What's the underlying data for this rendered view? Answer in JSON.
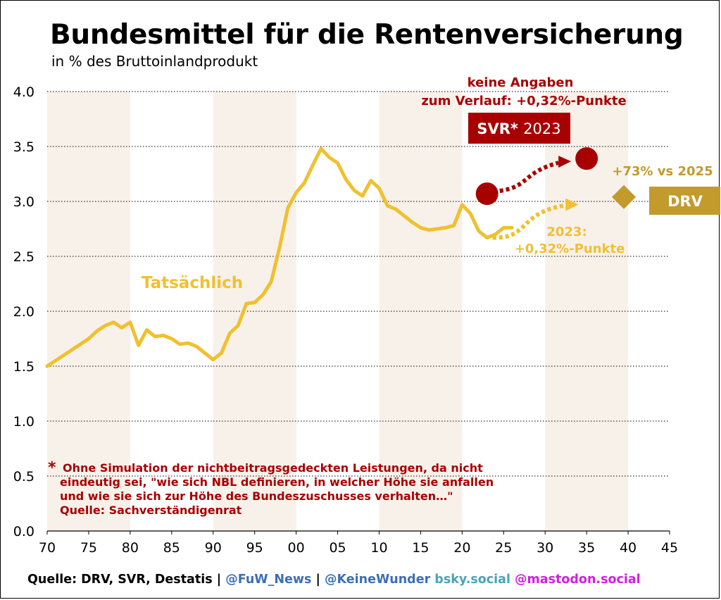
{
  "title": "Bundesmittel für die Rentenversicherung",
  "subtitle": "in % des Bruttoinlandprodukt",
  "colors": {
    "actual": "#f0c030",
    "svr": "#a80000",
    "drv": "#c39a2c",
    "band": "#f8f1ea",
    "grid": "#000000"
  },
  "chart_data": {
    "type": "line",
    "xlim": [
      70,
      45
    ],
    "ylim": [
      0.0,
      4.0
    ],
    "x_tick_labels": [
      "70",
      "75",
      "80",
      "85",
      "90",
      "95",
      "00",
      "05",
      "10",
      "15",
      "20",
      "25",
      "30",
      "35",
      "40",
      "45"
    ],
    "y_tick_labels": [
      "0.0",
      "0.5",
      "1.0",
      "1.5",
      "2.0",
      "2.5",
      "3.0",
      "3.5",
      "4.0"
    ],
    "y_ticks": [
      0.0,
      0.5,
      1.0,
      1.5,
      2.0,
      2.5,
      3.0,
      3.5,
      4.0
    ],
    "x_axis_years": "1970–2045",
    "series": [
      {
        "name": "Tatsächlich",
        "x": [
          1970,
          1971,
          1972,
          1973,
          1974,
          1975,
          1976,
          1977,
          1978,
          1979,
          1980,
          1981,
          1982,
          1983,
          1984,
          1985,
          1986,
          1987,
          1988,
          1989,
          1990,
          1991,
          1992,
          1993,
          1994,
          1995,
          1996,
          1997,
          1998,
          1999,
          2000,
          2001,
          2002,
          2003,
          2004,
          2005,
          2006,
          2007,
          2008,
          2009,
          2010,
          2011,
          2012,
          2013,
          2014,
          2015,
          2016,
          2017,
          2018,
          2019,
          2020,
          2021,
          2022,
          2023,
          2024,
          2025,
          2026
        ],
        "values": [
          1.5,
          1.55,
          1.6,
          1.65,
          1.7,
          1.75,
          1.82,
          1.87,
          1.9,
          1.85,
          1.9,
          1.69,
          1.83,
          1.77,
          1.78,
          1.75,
          1.7,
          1.71,
          1.68,
          1.62,
          1.56,
          1.62,
          1.8,
          1.87,
          2.07,
          2.08,
          2.15,
          2.27,
          2.58,
          2.94,
          3.08,
          3.17,
          3.33,
          3.48,
          3.4,
          3.35,
          3.2,
          3.1,
          3.05,
          3.19,
          3.12,
          2.96,
          2.93,
          2.87,
          2.81,
          2.76,
          2.74,
          2.75,
          2.76,
          2.78,
          2.97,
          2.89,
          2.73,
          2.67,
          2.7,
          2.76,
          2.76
        ]
      }
    ],
    "projections": {
      "svr": {
        "x": [
          2023,
          2035
        ],
        "values": [
          3.07,
          3.39
        ]
      },
      "drv_actual_trend": {
        "x": [
          2023,
          2034
        ],
        "values": [
          2.67,
          2.99
        ]
      },
      "drv_marker": {
        "x": 2040,
        "value": 3.04
      }
    },
    "annotations": {
      "actual_label": "Tatsächlich",
      "svr_note_line1": "keine Angaben",
      "svr_note_line2": "zum Verlauf: +0,32%-Punkte",
      "svr_box_bold": "SVR*",
      "svr_box_year": "2023",
      "drv_label": "DRV",
      "drv_change": "+73% vs 2025",
      "trend_note_line1": "2023:",
      "trend_note_line2": "+0,32%-Punkte",
      "footnote_star": "*",
      "footnote_line1": "Ohne Simulation der nichtbeitragsgedeckten Leistungen, da nicht",
      "footnote_line2": "eindeutig sei, \"wie sich NBL definieren, in welcher Höhe sie anfallen",
      "footnote_line3": "und wie sie sich zur Höhe des Bundeszuschusses verhalten…\"",
      "footnote_line4": "Quelle: Sachverständigenrat"
    }
  },
  "footer": {
    "source": "Quelle: DRV, SVR, Destatis",
    "sep": " | ",
    "fuw": "@FuW_News",
    "sep2": " | ",
    "keinewunder": "@KeineWunder",
    "bsky": " bsky.social",
    "mastodon": " @mastodon.social"
  }
}
